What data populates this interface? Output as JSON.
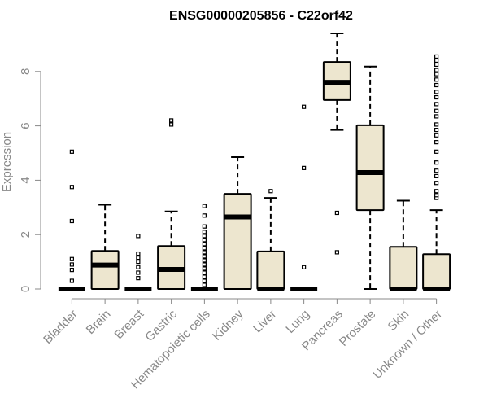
{
  "chart_data": {
    "type": "box",
    "title": "ENSG00000205856 - C22orf42",
    "ylabel": "Expression",
    "xlabel": "",
    "ylim": [
      0,
      9.4
    ],
    "yticks": [
      0,
      2,
      4,
      6,
      8
    ],
    "categories": [
      "Bladder",
      "Brain",
      "Breast",
      "Gastric",
      "Hematopoietic cells",
      "Kidney",
      "Liver",
      "Lung",
      "Pancreas",
      "Prostate",
      "Skin",
      "Unknown / Other"
    ],
    "boxes": [
      {
        "whislo": 0,
        "q1": 0,
        "med": 0,
        "q3": 0,
        "whishi": 0,
        "fliers": [
          0.3,
          0.7,
          0.9,
          1.1,
          2.5,
          3.75,
          5.05
        ]
      },
      {
        "whislo": 0,
        "q1": 0,
        "med": 0.88,
        "q3": 1.4,
        "whishi": 3.1,
        "fliers": []
      },
      {
        "whislo": 0,
        "q1": 0,
        "med": 0,
        "q3": 0,
        "whishi": 0,
        "fliers": [
          0.4,
          0.6,
          0.8,
          1.0,
          1.15,
          1.3,
          1.95
        ]
      },
      {
        "whislo": 0,
        "q1": 0,
        "med": 0.72,
        "q3": 1.58,
        "whishi": 2.85,
        "fliers": [
          6.05,
          6.2
        ]
      },
      {
        "whislo": 0,
        "q1": 0,
        "med": 0,
        "q3": 0,
        "whishi": 0,
        "fliers": [
          0.15,
          0.3,
          0.45,
          0.6,
          0.75,
          0.9,
          1.05,
          1.2,
          1.35,
          1.5,
          1.65,
          1.8,
          1.95,
          2.1,
          2.3,
          2.7,
          3.05
        ]
      },
      {
        "whislo": 0,
        "q1": 0,
        "med": 2.65,
        "q3": 3.5,
        "whishi": 4.85,
        "fliers": []
      },
      {
        "whislo": 0,
        "q1": 0,
        "med": 0,
        "q3": 1.38,
        "whishi": 3.35,
        "fliers": [
          3.6
        ]
      },
      {
        "whislo": 0,
        "q1": 0,
        "med": 0,
        "q3": 0,
        "whishi": 0,
        "fliers": [
          0.8,
          4.45,
          6.7
        ]
      },
      {
        "whislo": 5.85,
        "q1": 6.95,
        "med": 7.6,
        "q3": 8.35,
        "whishi": 9.4,
        "fliers": [
          1.35,
          2.8
        ]
      },
      {
        "whislo": 0,
        "q1": 2.9,
        "med": 4.28,
        "q3": 6.02,
        "whishi": 8.18,
        "fliers": []
      },
      {
        "whislo": 0,
        "q1": 0,
        "med": 0,
        "q3": 1.55,
        "whishi": 3.25,
        "fliers": []
      },
      {
        "whislo": 0,
        "q1": 0,
        "med": 0,
        "q3": 1.28,
        "whishi": 2.9,
        "fliers": [
          3.35,
          3.45,
          3.6,
          3.9,
          4.15,
          4.35,
          4.65,
          5.05,
          5.4,
          5.65,
          5.85,
          6.05,
          6.35,
          6.55,
          6.8,
          7.05,
          7.25,
          7.5,
          7.7,
          7.9,
          8.05,
          8.25,
          8.4,
          8.55
        ]
      }
    ],
    "box_fill": "#ede6cf",
    "box_stroke": "#000000",
    "axis_text_color": "#888888",
    "grid": false
  }
}
